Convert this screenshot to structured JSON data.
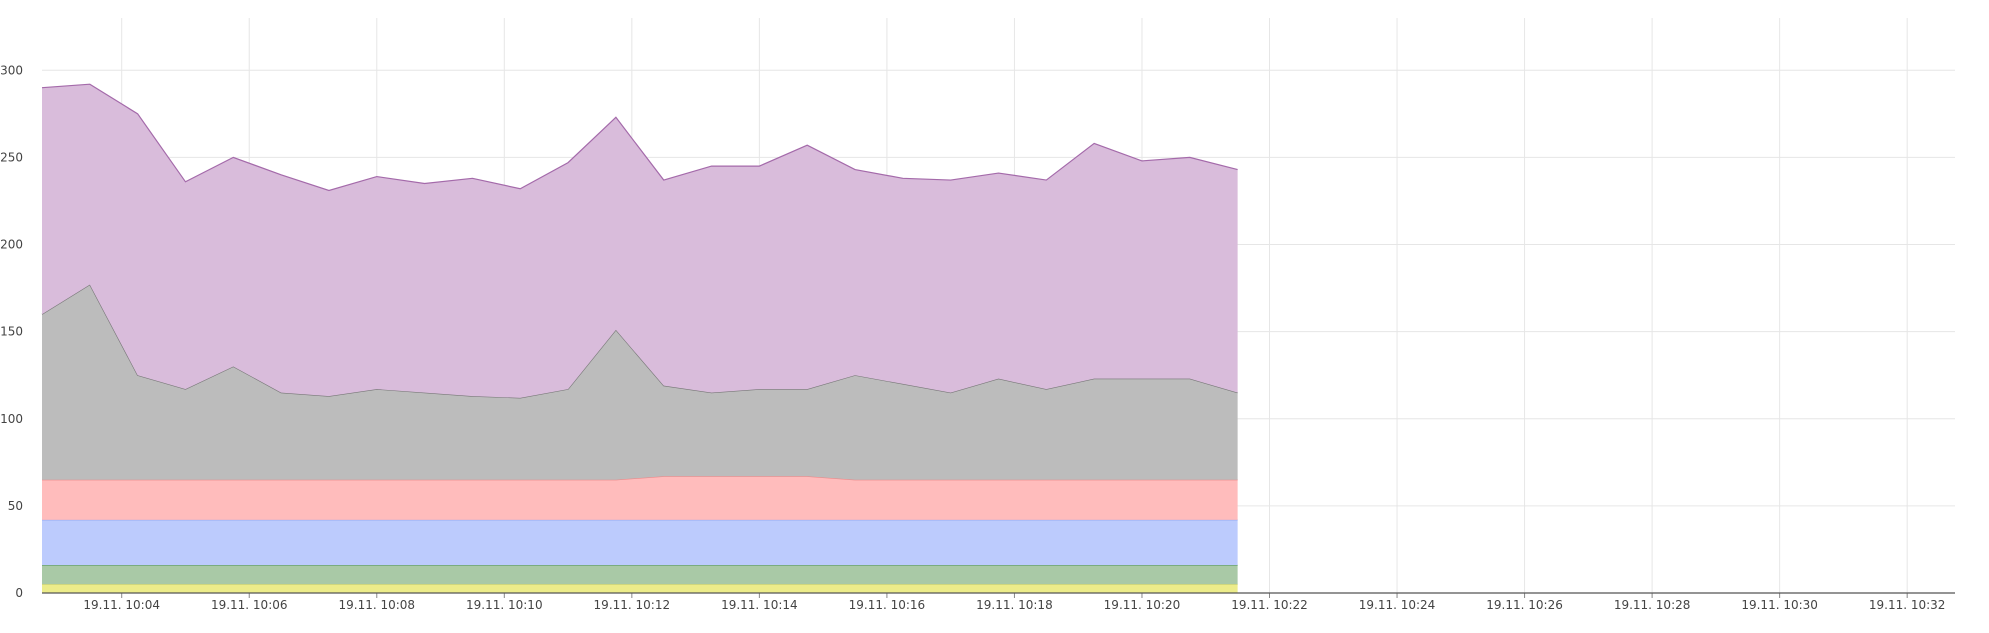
{
  "chart_data": {
    "type": "area",
    "stacked": true,
    "grid": true,
    "legend": "none",
    "title": "",
    "xlabel": "",
    "ylabel": "",
    "ylim": [
      0,
      330
    ],
    "xlim": [
      "19.11. 10:02:45",
      "19.11. 10:32:45"
    ],
    "data_end": "19.11. 10:21:30",
    "y_ticks": [
      "0",
      "50",
      "100",
      "150",
      "200",
      "250",
      "300"
    ],
    "x_ticks": [
      "19.11. 10:04",
      "19.11. 10:06",
      "19.11. 10:08",
      "19.11. 10:10",
      "19.11. 10:12",
      "19.11. 10:14",
      "19.11. 10:16",
      "19.11. 10:18",
      "19.11. 10:20",
      "19.11. 10:22",
      "19.11. 10:24",
      "19.11. 10:26",
      "19.11. 10:28",
      "19.11. 10:30",
      "19.11. 10:32"
    ],
    "x": [
      "10:02:45",
      "10:03:30",
      "10:04:15",
      "10:05:00",
      "10:05:45",
      "10:06:30",
      "10:07:15",
      "10:08:00",
      "10:08:45",
      "10:09:30",
      "10:10:15",
      "10:11:00",
      "10:11:45",
      "10:12:30",
      "10:13:15",
      "10:14:00",
      "10:14:45",
      "10:15:30",
      "10:16:15",
      "10:17:00",
      "10:17:45",
      "10:18:30",
      "10:19:15",
      "10:20:00",
      "10:20:45",
      "10:21:30"
    ],
    "series": [
      {
        "color": "#ecec8a",
        "line": "#d9d96a",
        "values": [
          5,
          5,
          5,
          5,
          5,
          5,
          5,
          5,
          5,
          5,
          5,
          5,
          5,
          5,
          5,
          5,
          5,
          5,
          5,
          5,
          5,
          5,
          5,
          5,
          5,
          5
        ]
      },
      {
        "color": "#a9c9a6",
        "line": "#5b9b57",
        "values": [
          11,
          11,
          11,
          11,
          11,
          11,
          11,
          11,
          11,
          11,
          11,
          11,
          11,
          11,
          11,
          11,
          11,
          11,
          11,
          11,
          11,
          11,
          11,
          11,
          11,
          11
        ]
      },
      {
        "color": "#bccbfd",
        "line": "#8da2ee",
        "values": [
          26,
          26,
          26,
          26,
          26,
          26,
          26,
          26,
          26,
          26,
          26,
          26,
          26,
          26,
          26,
          26,
          26,
          26,
          26,
          26,
          26,
          26,
          26,
          26,
          26,
          26
        ]
      },
      {
        "color": "#ffbcbc",
        "line": "#ee8a8a",
        "values": [
          23,
          23,
          23,
          23,
          23,
          23,
          23,
          23,
          23,
          23,
          23,
          23,
          23,
          25,
          25,
          25,
          25,
          23,
          23,
          23,
          23,
          23,
          23,
          23,
          23,
          23
        ]
      },
      {
        "color": "#bcbcbc",
        "line": "#777777",
        "values": [
          95,
          112,
          60,
          52,
          65,
          50,
          48,
          52,
          50,
          48,
          47,
          52,
          86,
          52,
          48,
          50,
          50,
          60,
          55,
          50,
          58,
          52,
          58,
          58,
          58,
          50
        ]
      },
      {
        "color": "#d9bcdb",
        "line": "#a46aaa",
        "values": [
          130,
          115,
          150,
          119,
          120,
          125,
          118,
          122,
          120,
          125,
          120,
          130,
          122,
          118,
          130,
          128,
          140,
          118,
          118,
          122,
          118,
          120,
          135,
          125,
          127,
          128
        ]
      }
    ]
  }
}
